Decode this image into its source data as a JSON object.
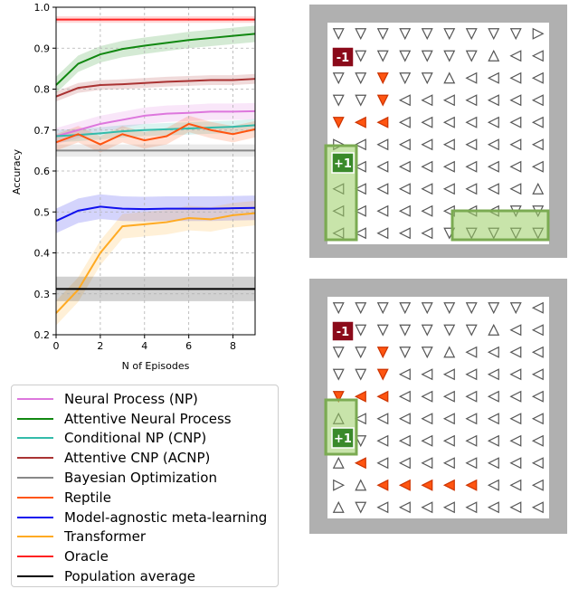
{
  "chart_data": {
    "type": "line",
    "xlabel": "N of Episodes",
    "ylabel": "Accuracy",
    "xlim": [
      0,
      9
    ],
    "ylim": [
      0.2,
      1.0
    ],
    "x_ticks": [
      "0",
      "2",
      "4",
      "6",
      "8"
    ],
    "y_ticks": [
      "0.2",
      "0.3",
      "0.4",
      "0.5",
      "0.6",
      "0.7",
      "0.8",
      "0.9",
      "1.0"
    ],
    "grid": "dashed",
    "legend_position": "below",
    "series": [
      {
        "name": "Neural Process (NP)",
        "color": "#dd77dd",
        "x": [
          0,
          1,
          2,
          3,
          4,
          5,
          6,
          7,
          8,
          9
        ],
        "y": [
          0.685,
          0.7,
          0.715,
          0.725,
          0.735,
          0.74,
          0.742,
          0.745,
          0.745,
          0.746
        ],
        "band": 0.02
      },
      {
        "name": "Attentive Neural Process",
        "color": "#118811",
        "x": [
          0,
          1,
          2,
          3,
          4,
          5,
          6,
          7,
          8,
          9
        ],
        "y": [
          0.81,
          0.862,
          0.885,
          0.898,
          0.906,
          0.913,
          0.92,
          0.925,
          0.93,
          0.935
        ],
        "band": 0.02
      },
      {
        "name": "Conditional NP (CNP)",
        "color": "#33bbaa",
        "x": [
          0,
          1,
          2,
          3,
          4,
          5,
          6,
          7,
          8,
          9
        ],
        "y": [
          0.685,
          0.688,
          0.692,
          0.697,
          0.7,
          0.702,
          0.704,
          0.706,
          0.708,
          0.712
        ],
        "band": 0.015
      },
      {
        "name": "Attentive CNP (ACNP)",
        "color": "#aa3333",
        "x": [
          0,
          1,
          2,
          3,
          4,
          5,
          6,
          7,
          8,
          9
        ],
        "y": [
          0.782,
          0.803,
          0.81,
          0.812,
          0.815,
          0.818,
          0.82,
          0.822,
          0.822,
          0.825
        ],
        "band": 0.012
      },
      {
        "name": "Bayesian Optimization",
        "color": "#888888",
        "x": [
          0,
          9
        ],
        "y": [
          0.65,
          0.65
        ],
        "band": 0.015
      },
      {
        "name": "Reptile",
        "color": "#ff5511",
        "x": [
          0,
          1,
          2,
          3,
          4,
          5,
          6,
          7,
          8,
          9
        ],
        "y": [
          0.67,
          0.69,
          0.665,
          0.69,
          0.675,
          0.685,
          0.715,
          0.7,
          0.69,
          0.702
        ],
        "band": 0.02
      },
      {
        "name": "Model-agnostic meta-learning",
        "color": "#1111ee",
        "x": [
          0,
          1,
          2,
          3,
          4,
          5,
          6,
          7,
          8,
          9
        ],
        "y": [
          0.478,
          0.503,
          0.513,
          0.508,
          0.507,
          0.508,
          0.508,
          0.508,
          0.509,
          0.51
        ],
        "band": 0.03
      },
      {
        "name": "Transformer",
        "color": "#ffaa22",
        "x": [
          0,
          1,
          2,
          3,
          4,
          5,
          6,
          7,
          8,
          9
        ],
        "y": [
          0.253,
          0.31,
          0.4,
          0.465,
          0.47,
          0.475,
          0.485,
          0.482,
          0.492,
          0.497
        ],
        "band": 0.03
      },
      {
        "name": "Oracle",
        "color": "#ff2222",
        "x": [
          0,
          9
        ],
        "y": [
          0.97,
          0.97
        ],
        "band": 0.008
      },
      {
        "name": "Population average",
        "color": "#000000",
        "x": [
          0,
          9
        ],
        "y": [
          0.312,
          0.312
        ],
        "band": 0.03
      }
    ]
  },
  "grids": [
    {
      "id": "top",
      "cells": [
        "vvvvvvvvv>",
        "vvvvvvv^<<",
        "vvVvv^<<<<",
        "vvV<<<<<<<",
        "VLL<<<<<<<",
        "><<<<<<<<<",
        "<<<<<<<<<<",
        "<<<<<<<<<^",
        "<<<<<<<<vv",
        "<<<<<vvvvv"
      ],
      "markers": [
        {
          "label": "-1",
          "color": "#8b0a1a"
        },
        {
          "label": "+1",
          "color": "#3a8a2a"
        }
      ]
    },
    {
      "id": "bottom",
      "cells": [
        "vvvvvvvvv<",
        "vvvvvvv^<<",
        "vvVvv^<<<<",
        "vvV<<<<<<<",
        "VLL<<<<<<<",
        "^<<<<<<<<<",
        "vv<<<<<<<<",
        "^L<<<<<<<<",
        ">^LLLLL<<<",
        "^v<<<<<<<<"
      ],
      "markers": [
        {
          "label": "-1",
          "color": "#8b0a1a"
        },
        {
          "label": "+1",
          "color": "#3a8a2a"
        }
      ]
    }
  ]
}
